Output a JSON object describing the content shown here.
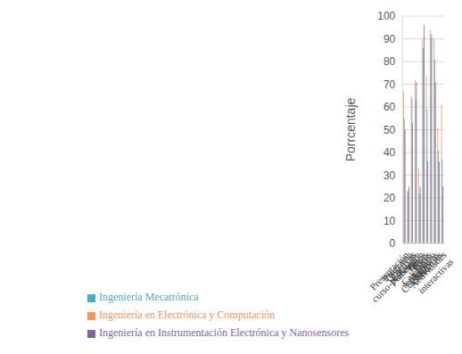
{
  "chart_data": {
    "type": "bar",
    "categories": [
      "Presentación curso-profesor",
      "Programa del curso",
      "Objetivos del curso",
      "Encuadre",
      "Planeación semestral",
      "Tareas",
      "Foros",
      "Calendario",
      "Lecturas",
      "Cuestionarios",
      "Actividades interactivas"
    ],
    "series": [
      {
        "name": "Ingeniería en Electrónica y Computación",
        "color": "#f4955f",
        "values": [
          67,
          23,
          65,
          72,
          33,
          90,
          74,
          94,
          90,
          51,
          61
        ]
      },
      {
        "name": "Ingeniería Mecatrónica",
        "color": "#4bacc6",
        "values": [
          55,
          23,
          64,
          63,
          22,
          86,
          59,
          90,
          81,
          41,
          37
        ]
      },
      {
        "name": "Ingeniería en Instrumentación Electrónica y Nanosensores",
        "color": "#8064a2",
        "values": [
          50,
          25,
          53,
          71,
          25,
          96,
          36,
          92,
          71,
          36,
          25
        ]
      }
    ],
    "y_label": "Porrcentaje",
    "ylim": [
      0,
      100
    ],
    "yticks": [
      0,
      10,
      20,
      30,
      40,
      50,
      60,
      70,
      80,
      90,
      100
    ],
    "grid": true,
    "legend": "bottom"
  }
}
